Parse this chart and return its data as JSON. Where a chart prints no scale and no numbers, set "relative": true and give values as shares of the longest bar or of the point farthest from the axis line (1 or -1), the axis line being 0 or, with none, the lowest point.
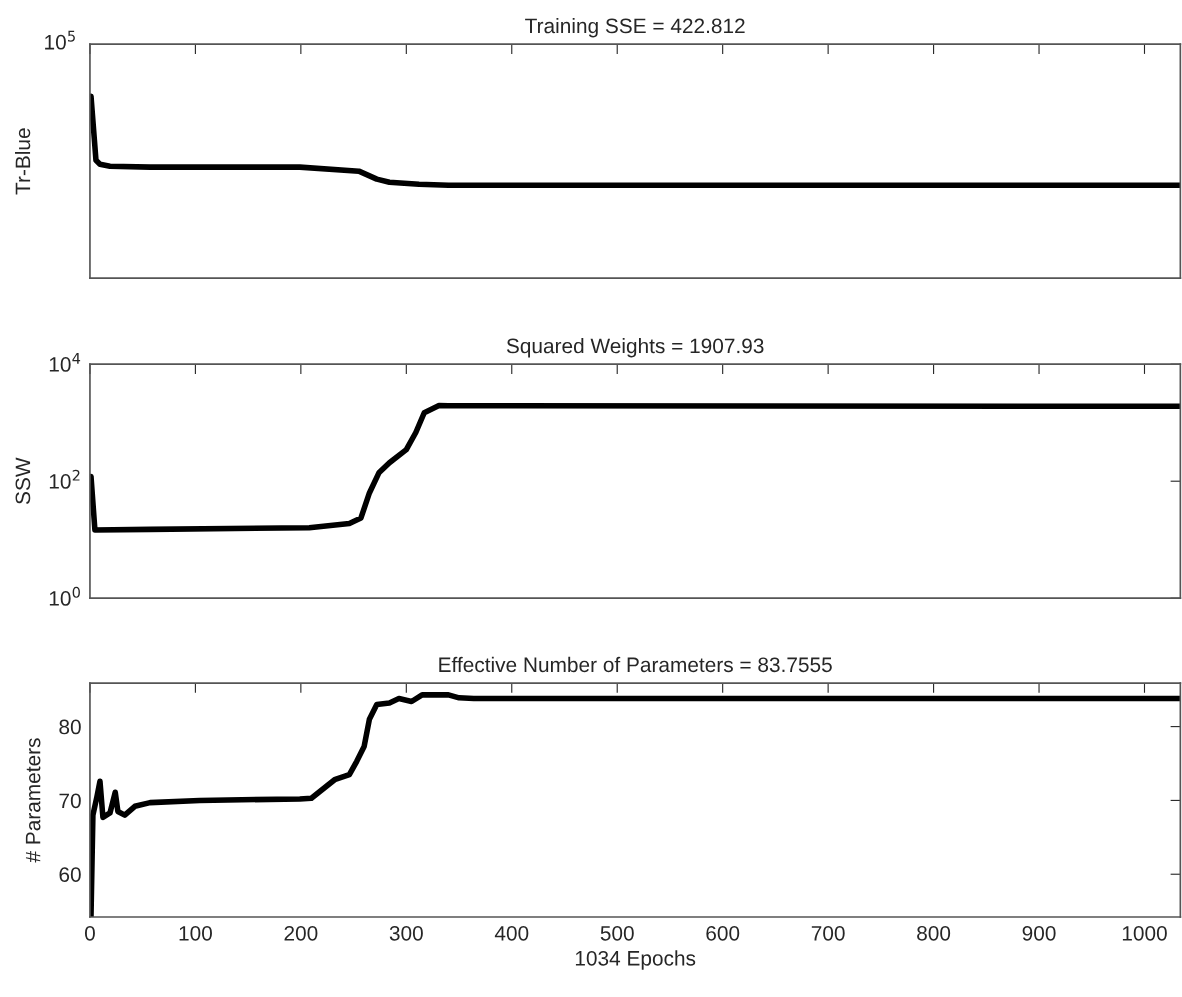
{
  "chart_data": [
    {
      "type": "line",
      "title": "Training SSE = 422.812",
      "ylabel": "Tr-Blue",
      "relative": true,
      "annotations": [
        "10$^{5}$"
      ],
      "xlim": [
        0,
        1034
      ],
      "xticks": [
        0,
        100,
        200,
        300,
        400,
        500,
        600,
        700,
        800,
        900,
        1000
      ],
      "tick_labels": false,
      "grid": false,
      "legend": false,
      "series": [
        {
          "color": "#000000",
          "x": [
            1,
            5.7,
            9.5,
            19,
            57,
            199,
            255,
            272,
            284,
            312,
            340,
            1034
          ],
          "values": [
            1.0,
            0.648,
            0.626,
            0.615,
            0.61,
            0.61,
            0.588,
            0.544,
            0.527,
            0.516,
            0.511,
            0.511
          ]
        }
      ]
    },
    {
      "type": "line",
      "title": "Squared Weights = 1907.93",
      "ylabel": "SSW",
      "log": "y",
      "ylim": [
        1,
        10000
      ],
      "yticks": [
        {
          "value": 1,
          "label": "10$^{0}$"
        },
        {
          "value": 100,
          "label": "10$^{2}$"
        },
        {
          "value": 10000,
          "label": "10$^{4}$"
        }
      ],
      "xlim": [
        0,
        1034
      ],
      "xticks": [
        0,
        100,
        200,
        300,
        400,
        500,
        600,
        700,
        800,
        900,
        1000
      ],
      "tick_labels": "y",
      "grid": false,
      "legend": false,
      "series": [
        {
          "color": "#000000",
          "x": [
            1,
            4.7,
            57,
            208,
            246,
            257,
            265,
            274,
            284,
            300,
            309,
            317,
            331,
            340,
            1034
          ],
          "values": [
            120,
            14.7,
            15,
            16,
            19,
            23.6,
            63,
            139,
            207,
            347,
            680,
            1480,
            1960,
            1950,
            1907.93
          ]
        }
      ]
    },
    {
      "type": "line",
      "title": "Effective Number of Parameters = 83.7555",
      "ylabel": "# Parameters",
      "xlabel": "1034 Epochs",
      "ylim": [
        54.2,
        85.9
      ],
      "yticks": [
        60,
        70,
        80
      ],
      "xlim": [
        0,
        1034
      ],
      "xticks": [
        0,
        100,
        200,
        300,
        400,
        500,
        600,
        700,
        800,
        900,
        1000
      ],
      "grid": false,
      "legend": false,
      "series": [
        {
          "color": "#000000",
          "x": [
            0,
            1,
            2.8,
            6.6,
            9.5,
            12.3,
            19,
            24,
            26.5,
            33,
            42.6,
            57,
            104,
            199,
            210,
            218,
            232,
            246,
            253,
            260,
            265,
            272,
            284,
            293,
            305,
            315,
            340,
            350,
            364,
            1034
          ],
          "values": [
            54.3,
            54.3,
            68,
            70.5,
            72.6,
            67.7,
            68.3,
            71.1,
            68.5,
            68,
            69.2,
            69.7,
            70,
            70.2,
            70.3,
            71.2,
            72.8,
            73.5,
            75.3,
            77.3,
            81,
            83,
            83.2,
            83.8,
            83.4,
            84.3,
            84.3,
            83.9,
            83.8,
            83.8
          ]
        }
      ]
    }
  ]
}
